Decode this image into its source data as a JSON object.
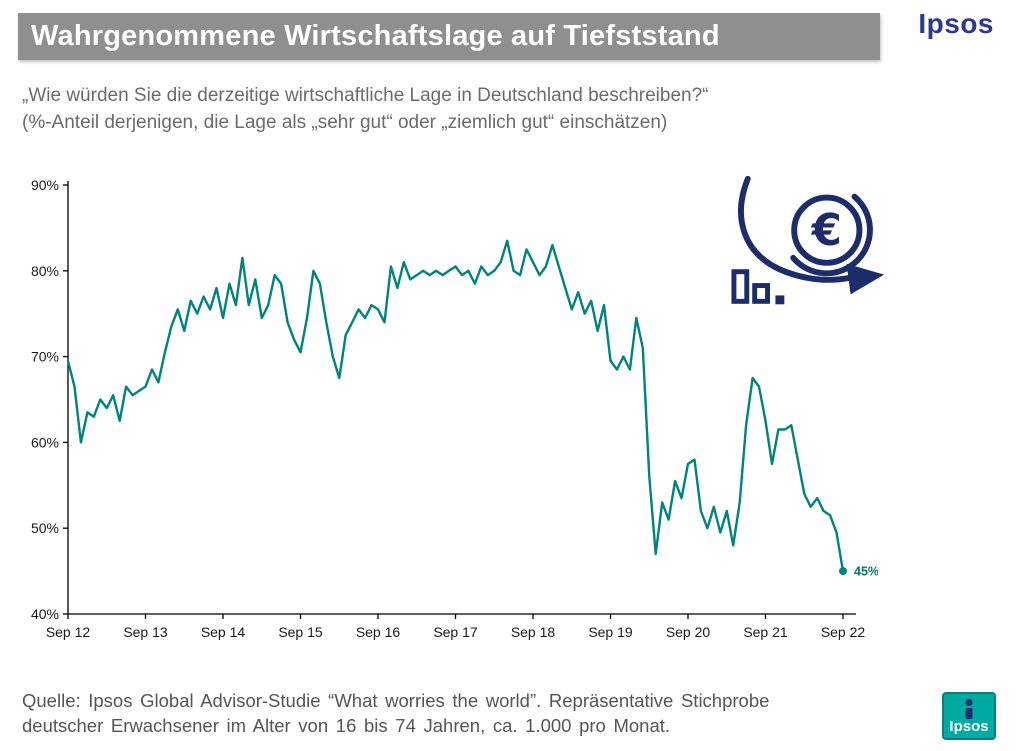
{
  "header": {
    "title": "Wahrgenommene Wirtschaftslage auf Tiefststand",
    "brand": "Ipsos"
  },
  "subtitle": {
    "line1": "„Wie würden Sie die derzeitige wirtschaftliche Lage in Deutschland beschreiben?“",
    "line2": "(%-Anteil derjenigen, die Lage als „sehr gut“ oder „ziemlich gut“ einschätzen)"
  },
  "colors": {
    "title_bar_gray": "#8f8f8f",
    "brand_navy": "#2b3990",
    "icon_navy": "#1d2d6b",
    "line_teal": "#00837c",
    "logo_teal": "#00a9a2"
  },
  "icons": {
    "chart_icon": "euro-decline-icon",
    "footer_logo": "ipsos-logo-box"
  },
  "chart_data": {
    "type": "line",
    "title": "Wahrgenommene Wirtschaftslage auf Tiefststand",
    "xlabel": "",
    "ylabel": "",
    "x_frequency": "monthly",
    "x_tick_labels": [
      "Sep 12",
      "Sep 13",
      "Sep 14",
      "Sep 15",
      "Sep 16",
      "Sep 17",
      "Sep 18",
      "Sep 19",
      "Sep 20",
      "Sep 21",
      "Sep 22"
    ],
    "x_tick_every_n_points": 12,
    "y_ticks": [
      90,
      80,
      70,
      60,
      50,
      40
    ],
    "y_tick_suffix": "%",
    "ylim": [
      40,
      90
    ],
    "grid": false,
    "legend": "none",
    "end_label": "45%",
    "end_label_color": "#00726d",
    "series": [
      {
        "color": "#00837c",
        "values": [
          69.5,
          66.5,
          60,
          63.5,
          63,
          65,
          64,
          65.5,
          62.5,
          66.5,
          65.5,
          66,
          66.5,
          68.5,
          67,
          70.5,
          73.5,
          75.5,
          73,
          76.5,
          75,
          77,
          75.5,
          78,
          74.5,
          78.5,
          76,
          81.5,
          76,
          79,
          74.5,
          76,
          79.5,
          78.5,
          74,
          72,
          70.5,
          74.5,
          80,
          78.5,
          74,
          70,
          67.5,
          72.5,
          74,
          75.5,
          74.5,
          76,
          75.5,
          74,
          80.5,
          78,
          81,
          79,
          79.5,
          80,
          79.5,
          80,
          79.5,
          80,
          80.5,
          79.5,
          80,
          78.5,
          80.5,
          79.5,
          80,
          81,
          83.5,
          80,
          79.5,
          82.5,
          81,
          79.5,
          80.5,
          83,
          80.5,
          78,
          75.5,
          77.5,
          75,
          76.5,
          73,
          76,
          69.5,
          68.5,
          70,
          68.5,
          74.5,
          71,
          56,
          47,
          53,
          51,
          55.5,
          53.5,
          57.5,
          58,
          52,
          50,
          52.5,
          49.5,
          52,
          48,
          53,
          62,
          67.5,
          66.5,
          62.5,
          57.5,
          61.5,
          61.5,
          62,
          58,
          54,
          52.5,
          53.5,
          52,
          51.5,
          49.5,
          45
        ]
      }
    ]
  },
  "footer": {
    "source_line1": "Quelle: Ipsos Global Advisor-Studie “What worries the world”. Repräsentative Stichprobe",
    "source_line2": "deutscher Erwachsener im Alter von 16 bis 74 Jahren, ca. 1.000 pro Monat.",
    "logo_text": "Ipsos"
  }
}
